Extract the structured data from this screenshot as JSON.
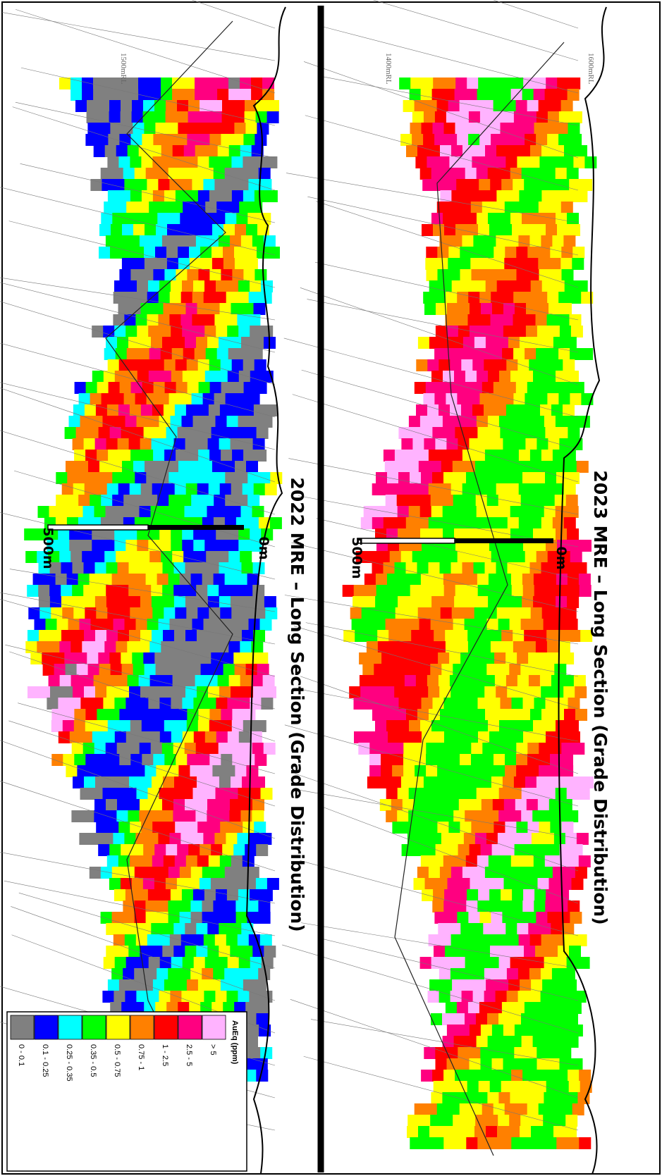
{
  "sections": [
    {
      "title": "2023 MRE – Long Section (Grade Distribution)",
      "rl_labels": [
        "1600mRL",
        "1400mRL"
      ],
      "scale_start": "0m",
      "scale_end": "500m"
    },
    {
      "title": "2022 MRE – Long Section (Grade Distribution)",
      "rl_labels": [
        "1500mRL"
      ],
      "scale_start": "0m",
      "scale_end": "500m"
    }
  ],
  "legend": {
    "title": "AuEq (ppm)",
    "items": [
      {
        "label": "0 - 0.1",
        "color": "#808080"
      },
      {
        "label": "0.1 - 0.25",
        "color": "#0000ff"
      },
      {
        "label": "0.25 - 0.35",
        "color": "#00ffff"
      },
      {
        "label": "0.35 - 0.5",
        "color": "#00ff00"
      },
      {
        "label": "0.5 - 0.75",
        "color": "#ffff00"
      },
      {
        "label": "0.75 - 1",
        "color": "#ff8000"
      },
      {
        "label": "1 - 2.5",
        "color": "#ff0000"
      },
      {
        "label": "2.5 - 5",
        "color": "#ff0080"
      },
      {
        "label": "> 5",
        "color": "#ffb3ff"
      }
    ]
  }
}
